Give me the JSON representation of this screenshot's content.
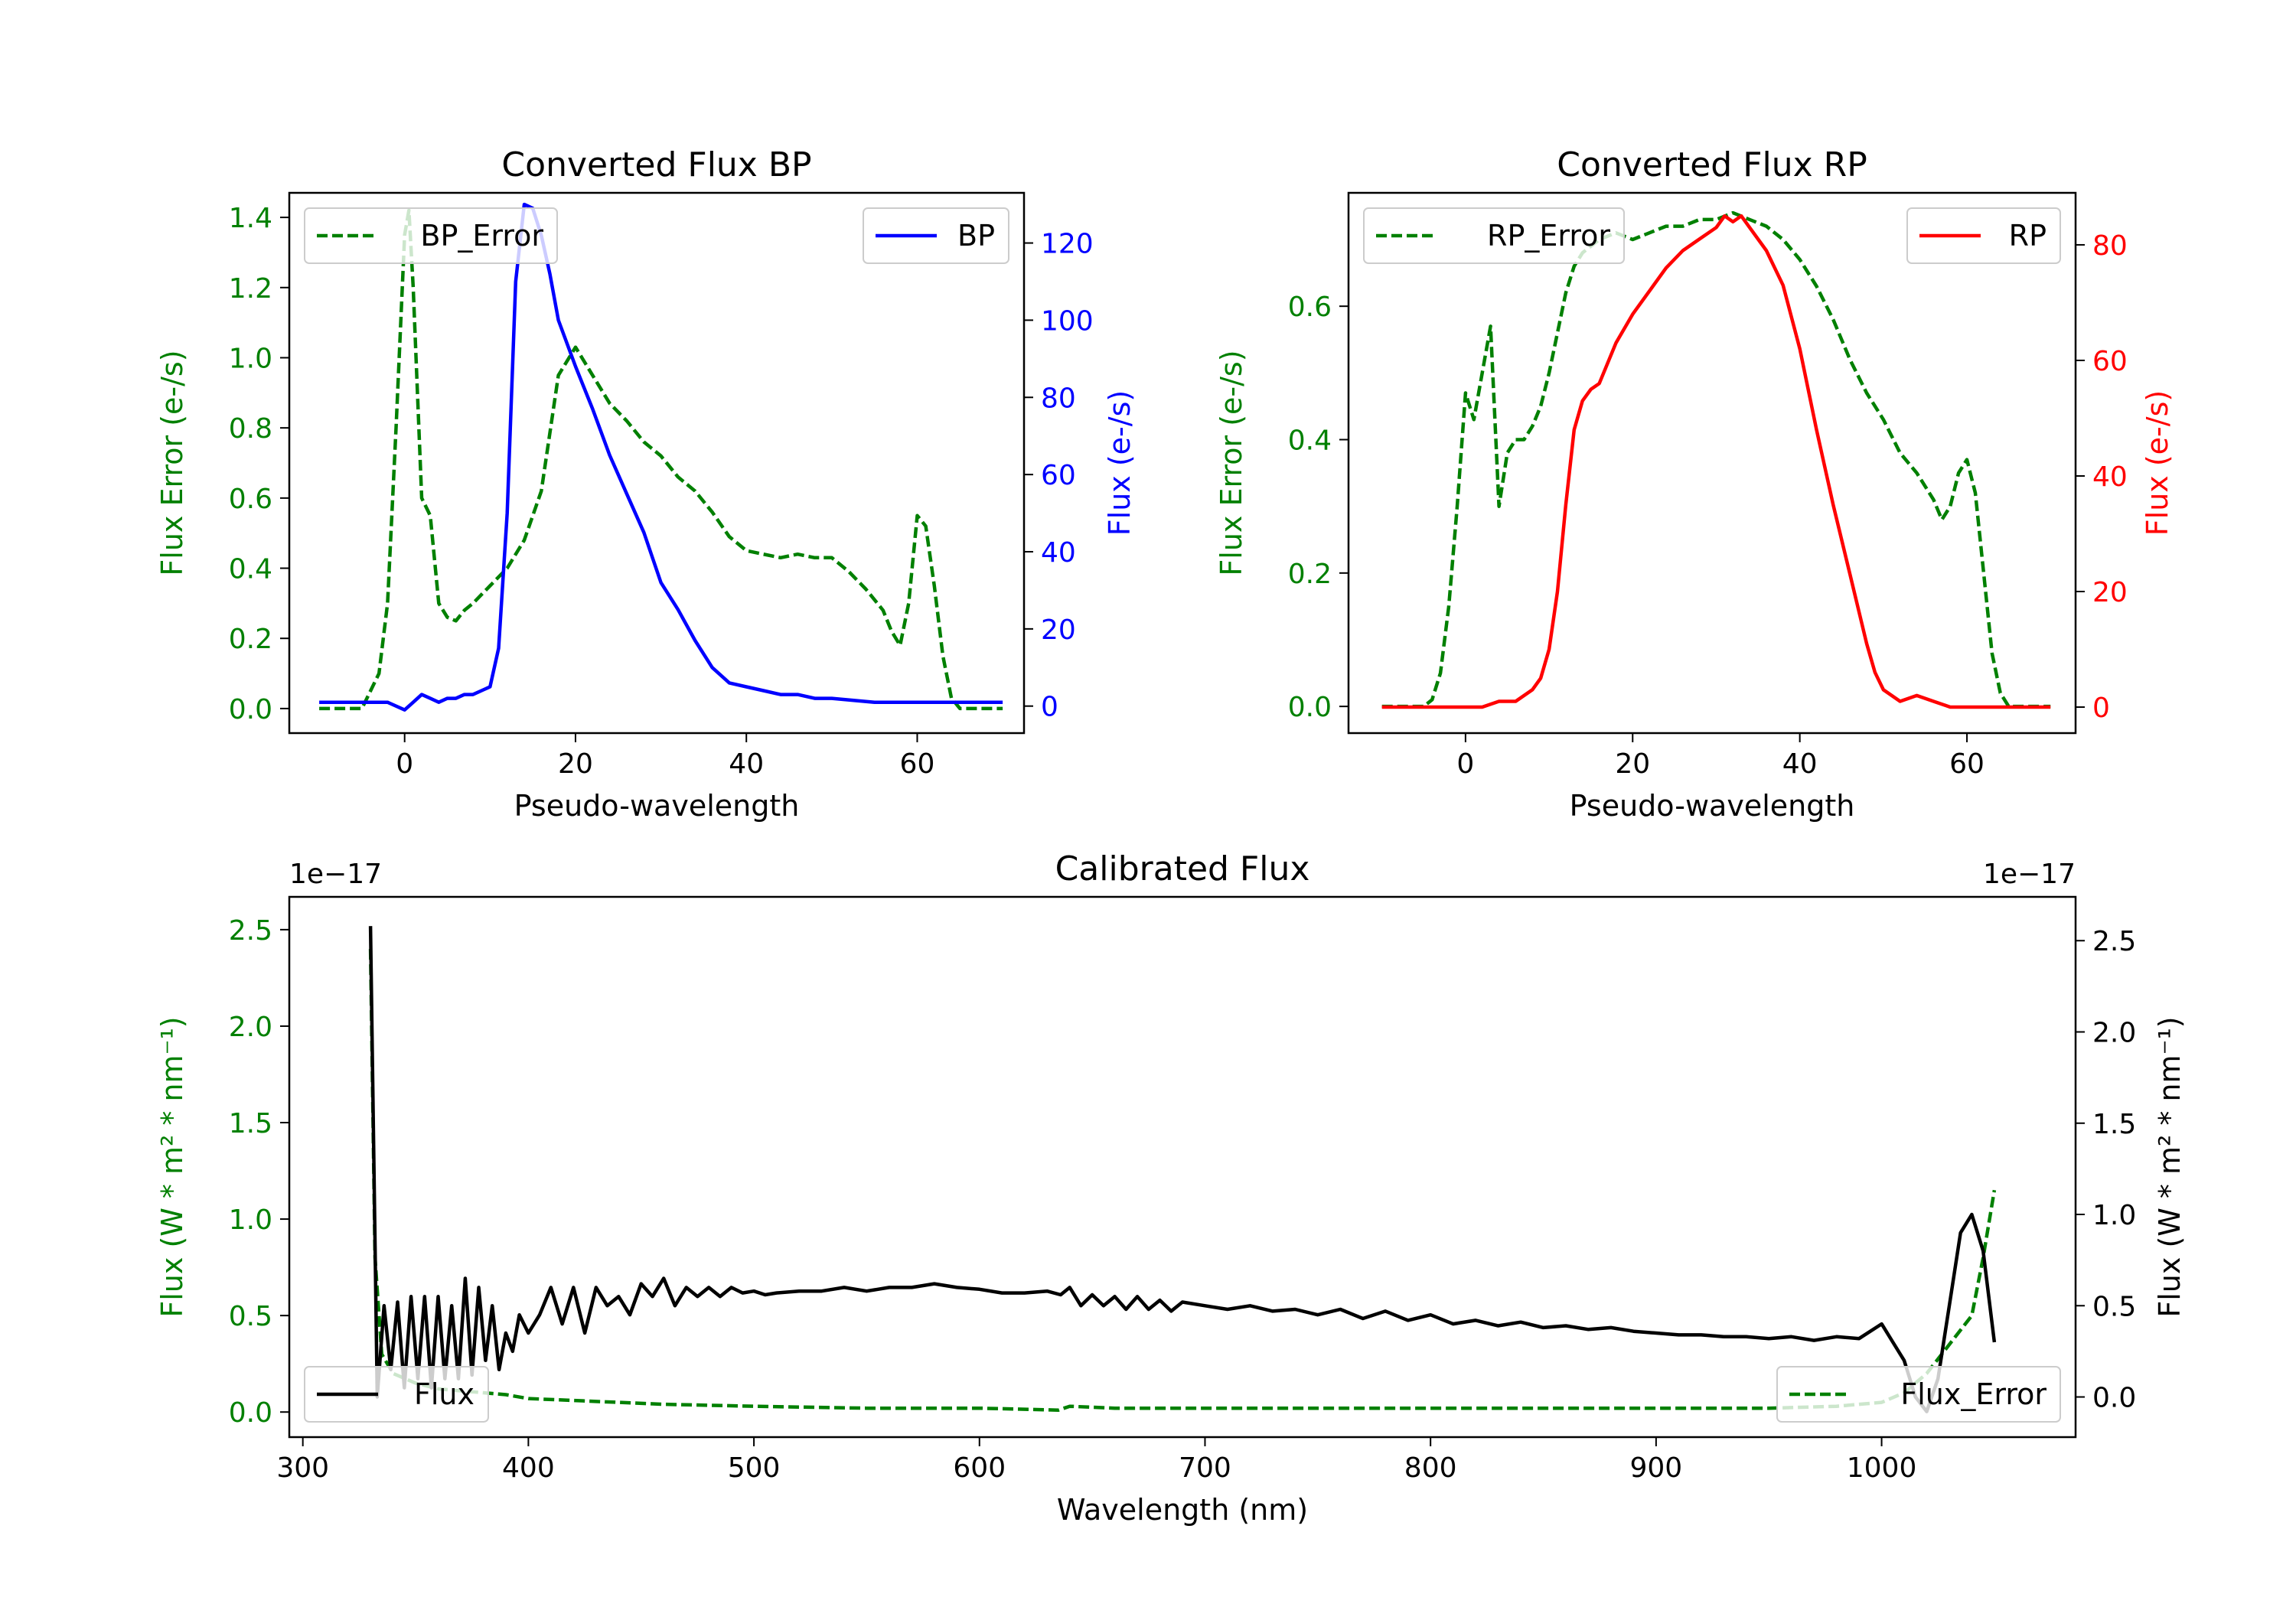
{
  "colors": {
    "bp": "#0000ff",
    "rp": "#ff0000",
    "error": "#008000",
    "flux": "#000000",
    "axis": "#000000"
  },
  "chart_data": [
    {
      "id": "bp",
      "type": "line",
      "title": "Converted Flux BP",
      "xlabel": "Pseudo-wavelength",
      "ylabel_left": "Flux Error (e-/s)",
      "ylabel_right": "Flux (e-/s)",
      "xlim": [
        -13.5,
        72.5
      ],
      "ylim_left": [
        -0.07,
        1.47
      ],
      "ylim_right": [
        -7,
        133
      ],
      "xticks": [
        0,
        20,
        40,
        60
      ],
      "yticks_left": [
        0.0,
        0.2,
        0.4,
        0.6,
        0.8,
        1.0,
        1.2,
        1.4
      ],
      "yticks_right": [
        0,
        20,
        40,
        60,
        80,
        100,
        120
      ],
      "ytick_labels_left": [
        "0.0",
        "0.2",
        "0.4",
        "0.6",
        "0.8",
        "1.0",
        "1.2",
        "1.4"
      ],
      "ytick_labels_right": [
        "0",
        "20",
        "40",
        "60",
        "80",
        "100",
        "120"
      ],
      "legend_left": {
        "label": "BP_Error",
        "position": "upper left"
      },
      "legend_right": {
        "label": "BP",
        "position": "upper right"
      },
      "series": [
        {
          "name": "BP_Error",
          "axis": "left",
          "style": "dashed",
          "color": "#008000",
          "x": [
            -10,
            -5,
            -3,
            -2,
            -1,
            0,
            0.5,
            1,
            2,
            3,
            4,
            5,
            6,
            7,
            8,
            10,
            12,
            14,
            16,
            18,
            20,
            22,
            24,
            26,
            28,
            30,
            32,
            34,
            36,
            38,
            40,
            42,
            44,
            46,
            48,
            50,
            52,
            54,
            56,
            57,
            58,
            59,
            60,
            61,
            62,
            63,
            64,
            65,
            70
          ],
          "y": [
            0.0,
            0.0,
            0.1,
            0.3,
            0.8,
            1.35,
            1.42,
            1.2,
            0.6,
            0.55,
            0.3,
            0.26,
            0.25,
            0.28,
            0.3,
            0.35,
            0.4,
            0.48,
            0.62,
            0.95,
            1.03,
            0.95,
            0.87,
            0.82,
            0.76,
            0.72,
            0.66,
            0.62,
            0.56,
            0.49,
            0.45,
            0.44,
            0.43,
            0.44,
            0.43,
            0.43,
            0.39,
            0.34,
            0.28,
            0.22,
            0.18,
            0.3,
            0.55,
            0.52,
            0.35,
            0.15,
            0.03,
            0.0,
            0.0
          ]
        },
        {
          "name": "BP",
          "axis": "right",
          "style": "solid",
          "color": "#0000ff",
          "x": [
            -10,
            -5,
            -2,
            0,
            1,
            2,
            3,
            4,
            5,
            6,
            7,
            8,
            9,
            10,
            11,
            12,
            13,
            14,
            15,
            16,
            17,
            18,
            20,
            22,
            24,
            26,
            28,
            30,
            32,
            34,
            36,
            38,
            40,
            42,
            44,
            46,
            48,
            50,
            55,
            60,
            70
          ],
          "y": [
            1,
            1,
            1,
            -1,
            1,
            3,
            2,
            1,
            2,
            2,
            3,
            3,
            4,
            5,
            15,
            50,
            110,
            130,
            129,
            122,
            112,
            100,
            88,
            77,
            65,
            55,
            45,
            32,
            25,
            17,
            10,
            6,
            5,
            4,
            3,
            3,
            2,
            2,
            1,
            1,
            1
          ]
        }
      ]
    },
    {
      "id": "rp",
      "type": "line",
      "title": "Converted Flux RP",
      "xlabel": "Pseudo-wavelength",
      "ylabel_left": "Flux Error (e-/s)",
      "ylabel_right": "Flux (e-/s)",
      "xlim": [
        -14,
        73
      ],
      "ylim_left": [
        -0.04,
        0.77
      ],
      "ylim_right": [
        -4.5,
        89
      ],
      "xticks": [
        0,
        20,
        40,
        60
      ],
      "yticks_left": [
        0.0,
        0.2,
        0.4,
        0.6
      ],
      "yticks_right": [
        0,
        20,
        40,
        60,
        80
      ],
      "ytick_labels_left": [
        "0.0",
        "0.2",
        "0.4",
        "0.6"
      ],
      "ytick_labels_right": [
        "0",
        "20",
        "40",
        "60",
        "80"
      ],
      "legend_left": {
        "label": "RP_Error",
        "position": "upper left"
      },
      "legend_right": {
        "label": "RP",
        "position": "upper right"
      },
      "series": [
        {
          "name": "RP_Error",
          "axis": "left",
          "style": "dashed",
          "color": "#008000",
          "x": [
            -10,
            -5,
            -4,
            -3,
            -2,
            -1,
            0,
            1,
            2,
            3,
            4,
            5,
            6,
            7,
            8,
            9,
            10,
            11,
            12,
            13,
            14,
            16,
            18,
            20,
            22,
            24,
            26,
            28,
            30,
            32,
            34,
            36,
            38,
            40,
            42,
            44,
            46,
            48,
            50,
            52,
            54,
            56,
            57,
            58,
            59,
            60,
            61,
            62,
            63,
            64,
            65,
            70
          ],
          "y": [
            0.0,
            0.0,
            0.01,
            0.05,
            0.15,
            0.3,
            0.47,
            0.43,
            0.5,
            0.57,
            0.3,
            0.38,
            0.4,
            0.4,
            0.42,
            0.45,
            0.5,
            0.56,
            0.62,
            0.66,
            0.68,
            0.7,
            0.71,
            0.7,
            0.71,
            0.72,
            0.72,
            0.73,
            0.73,
            0.74,
            0.73,
            0.72,
            0.7,
            0.67,
            0.63,
            0.58,
            0.52,
            0.47,
            0.43,
            0.38,
            0.35,
            0.31,
            0.28,
            0.3,
            0.35,
            0.37,
            0.32,
            0.2,
            0.08,
            0.02,
            0.0,
            0.0
          ]
        },
        {
          "name": "RP",
          "axis": "right",
          "style": "solid",
          "color": "#ff0000",
          "x": [
            -10,
            -5,
            0,
            2,
            4,
            6,
            8,
            9,
            10,
            11,
            12,
            13,
            14,
            15,
            16,
            18,
            20,
            22,
            24,
            26,
            28,
            30,
            31,
            32,
            33,
            34,
            36,
            38,
            40,
            42,
            44,
            46,
            48,
            49,
            50,
            52,
            54,
            56,
            58,
            60,
            65,
            70
          ],
          "y": [
            0,
            0,
            0,
            0,
            1,
            1,
            3,
            5,
            10,
            20,
            35,
            48,
            53,
            55,
            56,
            63,
            68,
            72,
            76,
            79,
            81,
            83,
            85,
            84,
            85,
            83,
            79,
            73,
            62,
            48,
            35,
            23,
            11,
            6,
            3,
            1,
            2,
            1,
            0,
            0,
            0,
            0
          ]
        }
      ]
    },
    {
      "id": "calibrated",
      "type": "line",
      "title": "Calibrated Flux",
      "xlabel": "Wavelength (nm)",
      "ylabel_left": "Flux (W * m² * nm⁻¹)",
      "ylabel_right": "Flux (W * m² * nm⁻¹)",
      "offset_text_left": "1e−17",
      "offset_text_right": "1e−17",
      "xlim": [
        294,
        1086
      ],
      "ylim_left": [
        -0.13,
        2.67
      ],
      "ylim_right": [
        -0.22,
        2.74
      ],
      "xticks": [
        300,
        400,
        500,
        600,
        700,
        800,
        900,
        1000
      ],
      "yticks_left": [
        0.0,
        0.5,
        1.0,
        1.5,
        2.0,
        2.5
      ],
      "yticks_right": [
        0.0,
        0.5,
        1.0,
        1.5,
        2.0,
        2.5
      ],
      "ytick_labels_left": [
        "0.0",
        "0.5",
        "1.0",
        "1.5",
        "2.0",
        "2.5"
      ],
      "ytick_labels_right": [
        "0.0",
        "0.5",
        "1.0",
        "1.5",
        "2.0",
        "2.5"
      ],
      "legend_left": {
        "label": "Flux",
        "position": "lower left"
      },
      "legend_right": {
        "label": "Flux_Error",
        "position": "lower right"
      },
      "series": [
        {
          "name": "Flux_Error",
          "axis": "left",
          "style": "dashed",
          "color": "#008000",
          "x": [
            330,
            332,
            335,
            340,
            350,
            360,
            370,
            380,
            390,
            400,
            420,
            440,
            460,
            500,
            550,
            600,
            635,
            640,
            660,
            700,
            750,
            800,
            850,
            900,
            950,
            980,
            1000,
            1010,
            1020,
            1030,
            1040,
            1045,
            1050
          ],
          "y": [
            2.4,
            0.8,
            0.3,
            0.2,
            0.15,
            0.12,
            0.11,
            0.1,
            0.09,
            0.07,
            0.06,
            0.05,
            0.04,
            0.03,
            0.02,
            0.02,
            0.01,
            0.03,
            0.02,
            0.02,
            0.02,
            0.02,
            0.02,
            0.02,
            0.02,
            0.03,
            0.05,
            0.1,
            0.2,
            0.35,
            0.5,
            0.8,
            1.15
          ]
        },
        {
          "name": "Flux",
          "axis": "right",
          "style": "solid",
          "color": "#000000",
          "x": [
            330,
            333,
            336,
            339,
            342,
            345,
            348,
            351,
            354,
            357,
            360,
            363,
            366,
            369,
            372,
            375,
            378,
            381,
            384,
            387,
            390,
            393,
            396,
            400,
            405,
            410,
            415,
            420,
            425,
            430,
            435,
            440,
            445,
            450,
            455,
            460,
            465,
            470,
            475,
            480,
            485,
            490,
            495,
            500,
            505,
            510,
            520,
            530,
            540,
            550,
            560,
            570,
            580,
            590,
            600,
            610,
            620,
            630,
            636,
            640,
            645,
            650,
            655,
            660,
            665,
            670,
            675,
            680,
            685,
            690,
            700,
            710,
            720,
            730,
            740,
            750,
            760,
            770,
            780,
            790,
            800,
            810,
            820,
            830,
            840,
            850,
            860,
            870,
            880,
            890,
            900,
            910,
            920,
            930,
            940,
            950,
            960,
            970,
            980,
            990,
            1000,
            1005,
            1010,
            1015,
            1020,
            1025,
            1030,
            1035,
            1040,
            1045,
            1050
          ],
          "y": [
            2.58,
            0.0,
            0.5,
            0.15,
            0.52,
            0.05,
            0.55,
            0.1,
            0.55,
            0.05,
            0.55,
            0.1,
            0.5,
            0.1,
            0.65,
            0.12,
            0.6,
            0.2,
            0.5,
            0.15,
            0.35,
            0.25,
            0.45,
            0.35,
            0.45,
            0.6,
            0.4,
            0.6,
            0.35,
            0.6,
            0.5,
            0.55,
            0.45,
            0.62,
            0.55,
            0.65,
            0.5,
            0.6,
            0.55,
            0.6,
            0.55,
            0.6,
            0.57,
            0.58,
            0.56,
            0.57,
            0.58,
            0.58,
            0.6,
            0.58,
            0.6,
            0.6,
            0.62,
            0.6,
            0.59,
            0.57,
            0.57,
            0.58,
            0.56,
            0.6,
            0.5,
            0.56,
            0.5,
            0.55,
            0.48,
            0.55,
            0.48,
            0.53,
            0.47,
            0.52,
            0.5,
            0.48,
            0.5,
            0.47,
            0.48,
            0.45,
            0.48,
            0.43,
            0.47,
            0.42,
            0.45,
            0.4,
            0.42,
            0.39,
            0.41,
            0.38,
            0.39,
            0.37,
            0.38,
            0.36,
            0.35,
            0.34,
            0.34,
            0.33,
            0.33,
            0.32,
            0.33,
            0.31,
            0.33,
            0.32,
            0.4,
            0.3,
            0.2,
            0.0,
            -0.08,
            0.1,
            0.5,
            0.9,
            1.0,
            0.8,
            0.3
          ]
        }
      ]
    }
  ]
}
